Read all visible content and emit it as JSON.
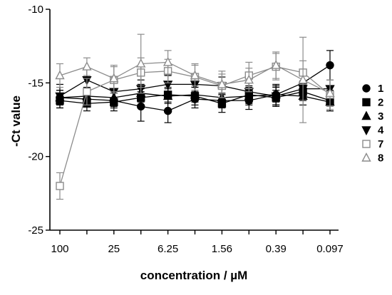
{
  "chart_data": {
    "type": "line",
    "title": "",
    "xlabel": "concentration / µM",
    "ylabel": "-Ct value",
    "ylim": [
      -25,
      -10
    ],
    "yticks": [
      -10,
      -15,
      -20,
      -25
    ],
    "x_ticklabels": [
      "100",
      "25",
      "6.25",
      "1.56",
      "0.39",
      "0.097"
    ],
    "x_positions": [
      1,
      2,
      3,
      4,
      5,
      6,
      7,
      8,
      9,
      10,
      11
    ],
    "legend_position": "right",
    "series": [
      {
        "name": "1",
        "marker": "circle-filled",
        "color": "#000000",
        "values": [
          -16.0,
          -16.1,
          -16.2,
          -16.6,
          -16.9,
          -16.1,
          -16.2,
          -16.2,
          -15.8,
          -15.0,
          -13.8
        ],
        "errors": [
          0.5,
          0.4,
          0.5,
          1.0,
          0.8,
          0.6,
          0.5,
          0.6,
          0.7,
          0.8,
          1.0
        ]
      },
      {
        "name": "2",
        "marker": "square-filled",
        "color": "#000000",
        "values": [
          -16.2,
          -16.4,
          -16.3,
          -16.0,
          -15.8,
          -15.9,
          -16.4,
          -15.8,
          -16.0,
          -15.6,
          -16.2
        ],
        "errors": [
          0.5,
          0.5,
          0.6,
          0.6,
          0.5,
          0.6,
          0.6,
          0.6,
          0.5,
          0.6,
          0.7
        ]
      },
      {
        "name": "3",
        "marker": "triangle-up-filled",
        "color": "#000000",
        "values": [
          -16.0,
          -15.9,
          -16.0,
          -15.7,
          -15.9,
          -15.8,
          -16.0,
          -15.9,
          -15.8,
          -15.9,
          -16.3
        ],
        "errors": [
          0.5,
          0.6,
          0.6,
          0.6,
          0.5,
          0.5,
          0.6,
          0.6,
          0.5,
          0.6,
          0.6
        ]
      },
      {
        "name": "4",
        "marker": "triangle-down-filled",
        "color": "#000000",
        "values": [
          -15.9,
          -14.8,
          -15.6,
          -15.4,
          -15.1,
          -15.1,
          -15.2,
          -15.6,
          -15.9,
          -15.4,
          -15.4
        ],
        "errors": [
          0.8,
          0.7,
          0.7,
          0.6,
          0.6,
          0.5,
          0.6,
          0.6,
          0.7,
          0.5,
          0.6
        ]
      },
      {
        "name": "7",
        "marker": "square-open",
        "color": "#8c8c8c",
        "values": [
          -22.0,
          -15.6,
          -14.8,
          -14.3,
          -14.2,
          -14.6,
          -15.2,
          -14.5,
          -13.9,
          -14.3,
          -15.8
        ],
        "errors": [
          0.9,
          0.9,
          0.9,
          1.0,
          0.8,
          0.9,
          0.8,
          0.9,
          0.9,
          0.8,
          1.0
        ]
      },
      {
        "name": "8",
        "marker": "triangle-up-open",
        "color": "#8c8c8c",
        "values": [
          -14.5,
          -13.9,
          -14.7,
          -13.7,
          -13.6,
          -14.5,
          -15.1,
          -14.8,
          -13.8,
          -14.8,
          -15.7
        ],
        "errors": [
          0.8,
          0.6,
          0.9,
          2.0,
          0.8,
          0.7,
          0.9,
          0.8,
          0.9,
          2.9,
          0.9
        ]
      }
    ]
  }
}
